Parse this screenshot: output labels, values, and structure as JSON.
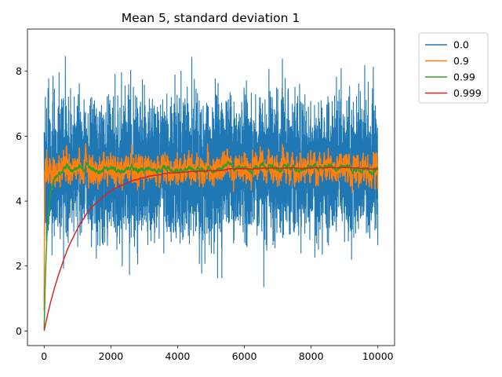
{
  "chart_data": {
    "type": "line",
    "title": "Mean 5, standard deviation 1",
    "xlabel": "",
    "ylabel": "",
    "xlim": [
      -500,
      10500
    ],
    "ylim": [
      -0.45,
      9.3
    ],
    "x_ticks": [
      0,
      2000,
      4000,
      6000,
      8000,
      10000
    ],
    "x_tick_labels": [
      "0",
      "2000",
      "4000",
      "6000",
      "8000",
      "10000"
    ],
    "y_ticks": [
      0,
      2,
      4,
      6,
      8
    ],
    "y_tick_labels": [
      "0",
      "2",
      "4",
      "6",
      "8"
    ],
    "grid": false,
    "legend_position": "outside-top-right",
    "n_points": 10000,
    "noise_mean": 5,
    "noise_std": 1,
    "series": [
      {
        "name": "0.0",
        "smoothing": 0.0,
        "color": "#1f77b4"
      },
      {
        "name": "0.9",
        "smoothing": 0.9,
        "color": "#ff7f0e"
      },
      {
        "name": "0.99",
        "smoothing": 0.99,
        "color": "#2ca02c"
      },
      {
        "name": "0.999",
        "smoothing": 0.999,
        "color": "#d62728"
      }
    ]
  }
}
